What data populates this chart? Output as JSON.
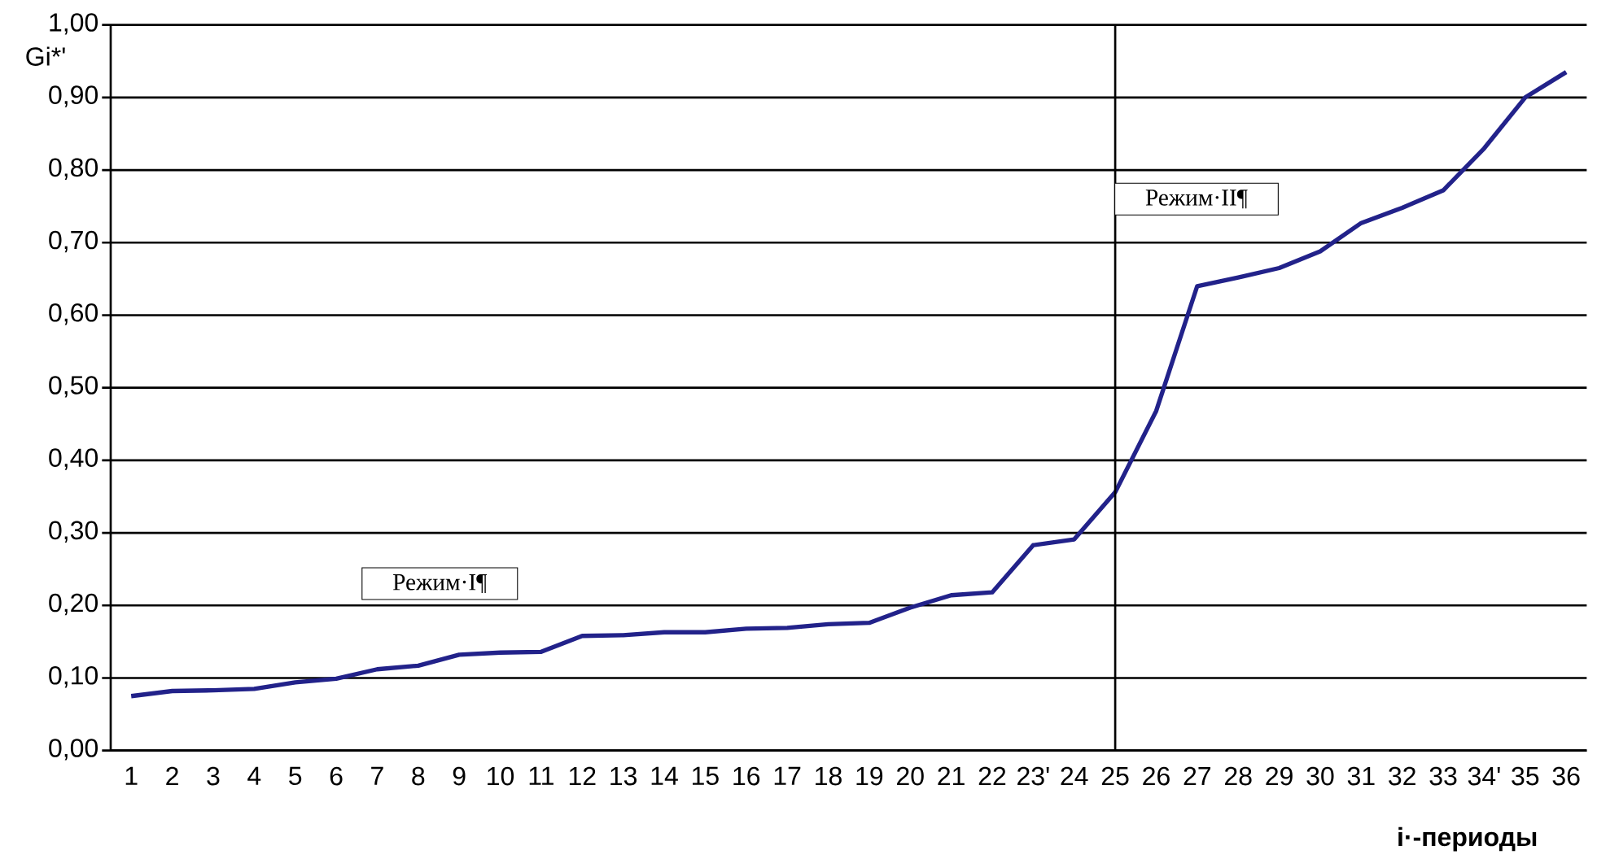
{
  "chart_data": {
    "type": "line",
    "xlabel": "i·-периоды",
    "ylabel": "Gi*'",
    "categories": [
      "1",
      "2",
      "3",
      "4",
      "5",
      "6",
      "7",
      "8",
      "9",
      "10",
      "11",
      "12",
      "13",
      "14",
      "15",
      "16",
      "17",
      "18",
      "19",
      "20",
      "21",
      "22",
      "23'",
      "24",
      "25",
      "26",
      "27",
      "28",
      "29",
      "30",
      "31",
      "32",
      "33",
      "34'",
      "35",
      "36"
    ],
    "series": [
      {
        "color": "#22228a",
        "values": [
          0.075,
          0.082,
          0.083,
          0.085,
          0.094,
          0.099,
          0.112,
          0.117,
          0.132,
          0.135,
          0.136,
          0.158,
          0.159,
          0.163,
          0.163,
          0.168,
          0.169,
          0.174,
          0.176,
          0.197,
          0.214,
          0.218,
          0.283,
          0.291,
          0.356,
          0.468,
          0.64,
          0.652,
          0.665,
          0.688,
          0.727,
          0.748,
          0.772,
          0.83,
          0.9,
          0.935
        ]
      }
    ],
    "ylim": [
      0,
      1
    ],
    "yticks": [
      {
        "value": 0,
        "label": "0,00"
      },
      {
        "value": 0.1,
        "label": "0,10"
      },
      {
        "value": 0.2,
        "label": "0,20"
      },
      {
        "value": 0.3,
        "label": "0,30"
      },
      {
        "value": 0.4,
        "label": "0,40"
      },
      {
        "value": 0.5,
        "label": "0,50"
      },
      {
        "value": 0.6,
        "label": "0,60"
      },
      {
        "value": 0.7,
        "label": "0,70"
      },
      {
        "value": 0.8,
        "label": "0,80"
      },
      {
        "value": 0.9,
        "label": "0,90"
      },
      {
        "value": 1,
        "label": "1,00"
      }
    ],
    "grid": "y",
    "marker": "none",
    "line_style": "solid",
    "ref_lines": [
      {
        "axis": "x",
        "value": "25",
        "color": "#000000"
      }
    ],
    "annotations": [
      "Режим·I¶",
      "Режим·II¶"
    ]
  }
}
